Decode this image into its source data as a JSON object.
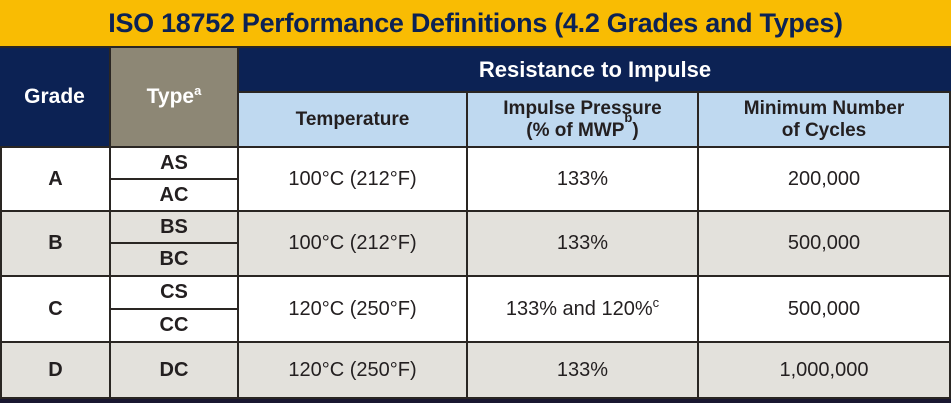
{
  "title": "ISO 18752 Performance Definitions (4.2 Grades and Types)",
  "header": {
    "grade_label": "Grade",
    "type_label": "Type",
    "type_footnote": "a",
    "resistance_label": "Resistance to Impulse",
    "temperature_label": "Temperature",
    "impulse_label_line1": "Impulse Pressure",
    "impulse_label_line2_prefix": "(% of MWP",
    "impulse_footnote": "b",
    "impulse_label_line2_suffix": ")",
    "cycles_label_line1": "Minimum Number",
    "cycles_label_line2": "of Cycles"
  },
  "rows": [
    {
      "grade": "A",
      "types": [
        "AS",
        "AC"
      ],
      "temperature": "100°C (212°F)",
      "impulse": "133%",
      "impulse_footnote": "",
      "cycles": "200,000"
    },
    {
      "grade": "B",
      "types": [
        "BS",
        "BC"
      ],
      "temperature": "100°C (212°F)",
      "impulse": "133%",
      "impulse_footnote": "",
      "cycles": "500,000"
    },
    {
      "grade": "C",
      "types": [
        "CS",
        "CC"
      ],
      "temperature": "120°C (250°F)",
      "impulse": "133% and 120%",
      "impulse_footnote": "c",
      "cycles": "500,000"
    },
    {
      "grade": "D",
      "types": [
        "DC"
      ],
      "temperature": "120°C (250°F)",
      "impulse": "133%",
      "impulse_footnote": "",
      "cycles": "1,000,000"
    }
  ],
  "footnote_markers": [
    "a",
    "b",
    "c"
  ],
  "colors": {
    "gold": "#f9bc03",
    "navy": "#0c2254",
    "taupe": "#8d8775",
    "light_blue": "#bfd9f0",
    "row_shaded": "#e3e1dc",
    "border": "#2a2623",
    "text_dark": "#231f20",
    "bottom_bar": "#191731"
  },
  "chart_data": {
    "type": "table",
    "title": "ISO 18752 Performance Definitions (4.2 Grades and Types)",
    "column_group": {
      "label": "Resistance to Impulse",
      "spans_columns": [
        "Temperature",
        "Impulse Pressure (% of MWPb)",
        "Minimum Number of Cycles"
      ]
    },
    "columns": [
      "Grade",
      "Typea",
      "Temperature",
      "Impulse Pressure (% of MWPb)",
      "Minimum Number of Cycles"
    ],
    "rows": [
      [
        "A",
        "AS",
        "100°C (212°F)",
        "133%",
        "200,000"
      ],
      [
        "A",
        "AC",
        "100°C (212°F)",
        "133%",
        "200,000"
      ],
      [
        "B",
        "BS",
        "100°C (212°F)",
        "133%",
        "500,000"
      ],
      [
        "B",
        "BC",
        "100°C (212°F)",
        "133%",
        "500,000"
      ],
      [
        "C",
        "CS",
        "120°C (250°F)",
        "133% and 120%c",
        "500,000"
      ],
      [
        "C",
        "CC",
        "120°C (250°F)",
        "133% and 120%c",
        "500,000"
      ],
      [
        "D",
        "DC",
        "120°C (250°F)",
        "133%",
        "1,000,000"
      ]
    ]
  }
}
